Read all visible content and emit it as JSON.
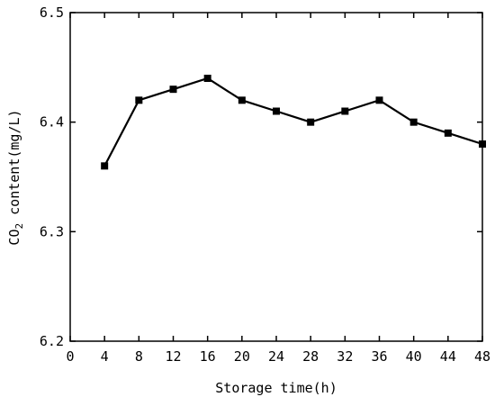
{
  "chart_data": {
    "type": "line",
    "xlabel": "Storage time(h)",
    "ylabel_parts": {
      "pre": "CO",
      "sub": "2",
      "post": " content(mg/L)"
    },
    "xlim": [
      0,
      48
    ],
    "ylim": [
      6.2,
      6.5
    ],
    "xticks": [
      "0",
      "4",
      "8",
      "12",
      "16",
      "20",
      "24",
      "28",
      "32",
      "36",
      "40",
      "44",
      "48"
    ],
    "yticks": [
      "6.2",
      "6.3",
      "6.4",
      "6.5"
    ],
    "grid": false,
    "marker": "square",
    "line_color": "#000000",
    "series": [
      {
        "x": [
          4,
          8,
          12,
          16,
          20,
          24,
          28,
          32,
          36,
          40,
          44,
          48
        ],
        "y": [
          6.36,
          6.42,
          6.43,
          6.44,
          6.42,
          6.41,
          6.4,
          6.41,
          6.42,
          6.4,
          6.39,
          6.38
        ]
      }
    ]
  }
}
